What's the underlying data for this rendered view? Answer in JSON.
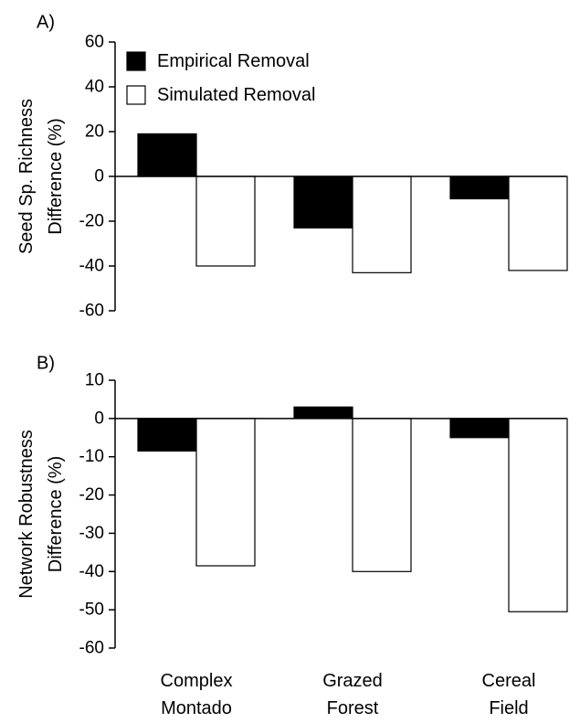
{
  "chart_data": [
    {
      "type": "bar",
      "panel_label": "A)",
      "ylabel_lines": [
        "Seed Sp. Richness",
        "Difference (%)"
      ],
      "ylim": [
        -60,
        60
      ],
      "yticks": [
        60,
        40,
        20,
        0,
        -20,
        -40,
        -60
      ],
      "categories": [
        "Complex Montado",
        "Grazed Forest",
        "Cereal Field"
      ],
      "series": [
        {
          "name": "Empirical Removal",
          "color": "#000000",
          "values": [
            19,
            -23,
            -10
          ]
        },
        {
          "name": "Simulated Removal",
          "color": "#ffffff",
          "values": [
            -40,
            -43,
            -42
          ]
        }
      ],
      "legend": {
        "position": "top-left"
      },
      "grid": false
    },
    {
      "type": "bar",
      "panel_label": "B)",
      "ylabel_lines": [
        "Network Robustness",
        "Difference (%)"
      ],
      "ylim": [
        -60,
        10
      ],
      "yticks": [
        10,
        0,
        -10,
        -20,
        -30,
        -40,
        -50,
        -60
      ],
      "categories": [
        "Complex Montado",
        "Grazed Forest",
        "Cereal Field"
      ],
      "category_label_lines": [
        [
          "Complex",
          "Montado"
        ],
        [
          "Grazed",
          "Forest"
        ],
        [
          "Cereal",
          "Field"
        ]
      ],
      "series": [
        {
          "name": "Empirical Removal",
          "color": "#000000",
          "values": [
            -8.5,
            3,
            -5
          ]
        },
        {
          "name": "Simulated Removal",
          "color": "#ffffff",
          "values": [
            -38.5,
            -40,
            -50.5
          ]
        }
      ],
      "grid": false
    }
  ]
}
